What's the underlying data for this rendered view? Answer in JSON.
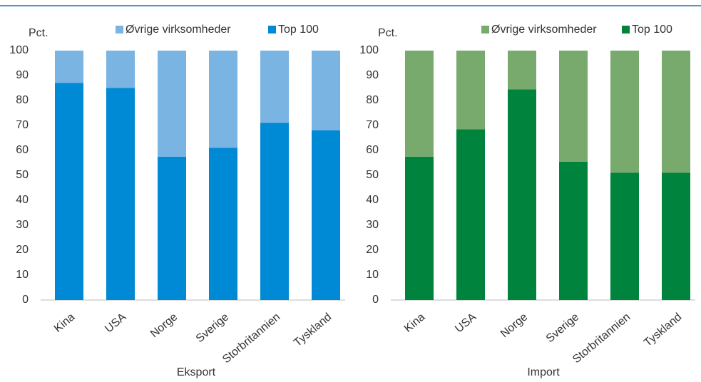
{
  "chart_data": [
    {
      "type": "stacked_bar",
      "x_label": "Eksport",
      "y_label": "Pct.",
      "categories": [
        "Kina",
        "USA",
        "Norge",
        "Sverige",
        "Storbritannien",
        "Tyskland"
      ],
      "series": [
        {
          "name": "Øvrige virksomheder",
          "color": "#7ab4e3",
          "values": [
            13,
            15,
            42.5,
            39,
            29,
            32
          ]
        },
        {
          "name": "Top 100",
          "color": "#0089d4",
          "values": [
            87,
            85,
            57.5,
            61,
            71,
            68
          ]
        }
      ],
      "ylim": [
        0,
        100
      ],
      "yticks": [
        0,
        10,
        20,
        30,
        40,
        50,
        60,
        70,
        80,
        90,
        100
      ]
    },
    {
      "type": "stacked_bar",
      "x_label": "Import",
      "y_label": "Pct.",
      "categories": [
        "Kina",
        "USA",
        "Norge",
        "Sverige",
        "Storbritannien",
        "Tyskland"
      ],
      "series": [
        {
          "name": "Øvrige virksomheder",
          "color": "#78aa6e",
          "values": [
            42.5,
            31.5,
            15.5,
            44.5,
            49,
            49
          ]
        },
        {
          "name": "Top 100",
          "color": "#00843d",
          "values": [
            57.5,
            68.5,
            84.5,
            55.5,
            51,
            51
          ]
        }
      ],
      "ylim": [
        0,
        100
      ],
      "yticks": [
        0,
        10,
        20,
        30,
        40,
        50,
        60,
        70,
        80,
        90,
        100
      ]
    }
  ]
}
